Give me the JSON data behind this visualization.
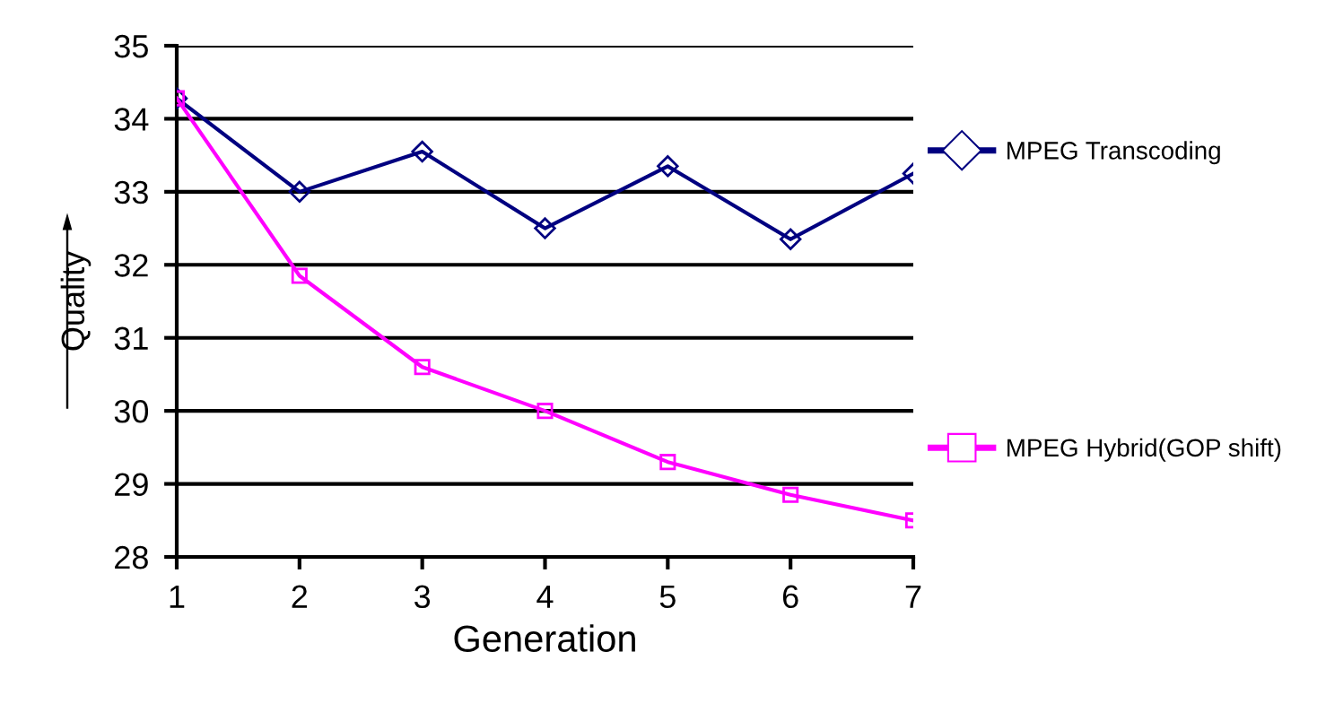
{
  "chart_data": {
    "type": "line",
    "xlabel": "Generation",
    "ylabel": "Quality",
    "x": [
      1,
      2,
      3,
      4,
      5,
      6,
      7
    ],
    "xlim": [
      1,
      7
    ],
    "xticks": [
      1,
      2,
      3,
      4,
      5,
      6,
      7
    ],
    "ylim": [
      28,
      35
    ],
    "yticks": [
      28,
      29,
      30,
      31,
      32,
      33,
      34,
      35
    ],
    "grid": "y",
    "legend": "right",
    "series": [
      {
        "name": "MPEG Transcoding",
        "color": "#000080",
        "marker": "diamond",
        "values": [
          34.28,
          33.0,
          33.55,
          32.5,
          33.35,
          32.35,
          33.25
        ]
      },
      {
        "name": "MPEG Hybrid(GOP shift)",
        "color": "#ff00ff",
        "marker": "square",
        "values": [
          34.28,
          31.85,
          30.6,
          30.0,
          29.3,
          28.85,
          28.5
        ]
      }
    ]
  }
}
